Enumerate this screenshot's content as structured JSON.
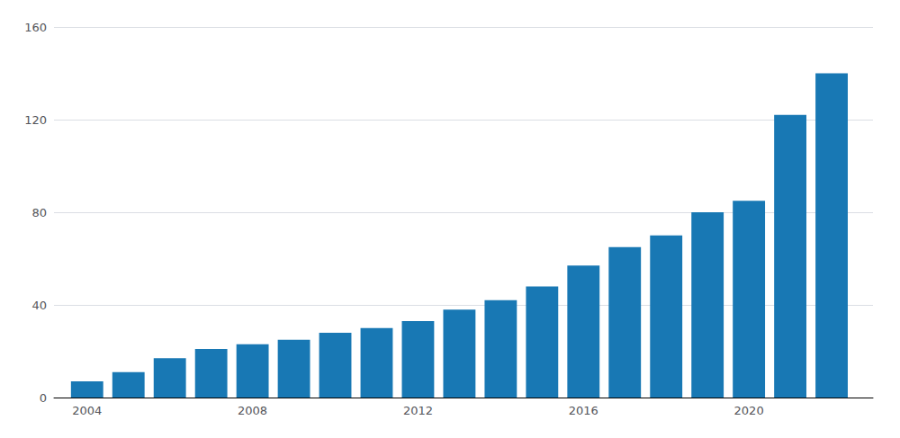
{
  "chart_data": {
    "type": "bar",
    "x": [
      2004,
      2005,
      2006,
      2007,
      2008,
      2009,
      2010,
      2011,
      2012,
      2013,
      2014,
      2015,
      2016,
      2017,
      2018,
      2019,
      2020,
      2021,
      2022
    ],
    "values": [
      7,
      11,
      17,
      21,
      23,
      25,
      28,
      30,
      33,
      38,
      42,
      48,
      57,
      65,
      70,
      80,
      85,
      122,
      140
    ],
    "color": "#1878B4",
    "xlim": [
      2003.2,
      2023.0
    ],
    "xticks": [
      2004,
      2008,
      2012,
      2016,
      2020
    ],
    "ylim": [
      0,
      160
    ],
    "yticks": [
      0,
      40,
      80,
      120,
      160
    ],
    "grid": true
  }
}
